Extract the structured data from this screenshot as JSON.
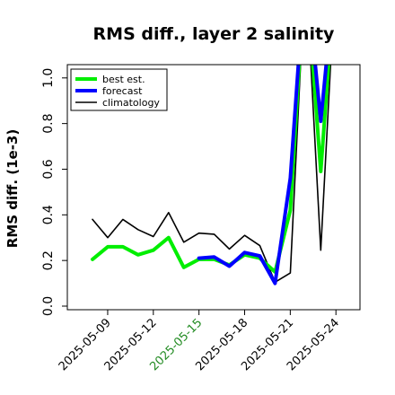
{
  "chart_data": {
    "type": "line",
    "title": "RMS diff., layer 2 salinity",
    "xlabel": "",
    "ylabel": "RMS diff. (1e-3)",
    "x_ticks": [
      "2025-05-09",
      "2025-05-12",
      "2025-05-15",
      "2025-05-18",
      "2025-05-21",
      "2025-05-24"
    ],
    "x_tick_colors": [
      "#000000",
      "#000000",
      "#228b22",
      "#000000",
      "#000000",
      "#000000"
    ],
    "y_ticks": [
      "0.0",
      "0.2",
      "0.4",
      "0.6",
      "0.8",
      "1.0"
    ],
    "ylim": [
      -0.02,
      1.04
    ],
    "x_values": [
      "2025-05-08",
      "2025-05-09",
      "2025-05-10",
      "2025-05-11",
      "2025-05-12",
      "2025-05-13",
      "2025-05-14",
      "2025-05-15",
      "2025-05-16",
      "2025-05-17",
      "2025-05-18",
      "2025-05-19",
      "2025-05-20",
      "2025-05-21",
      "2025-05-22",
      "2025-05-23",
      "2025-05-24"
    ],
    "legend_position": "top-left",
    "grid": false,
    "series": [
      {
        "name": "best est.",
        "color": "#00ee00",
        "line_width": 4,
        "values": [
          0.205,
          0.26,
          0.26,
          0.225,
          0.245,
          0.3,
          0.17,
          0.205,
          0.205,
          0.18,
          0.225,
          0.21,
          0.15,
          0.42,
          1.5,
          0.59,
          1.5
        ]
      },
      {
        "name": "forecast",
        "color": "#0000ff",
        "line_width": 4,
        "values": [
          null,
          null,
          null,
          null,
          null,
          null,
          null,
          0.21,
          0.215,
          0.175,
          0.235,
          0.22,
          0.1,
          0.56,
          1.5,
          0.81,
          1.5
        ]
      },
      {
        "name": "climatology",
        "color": "#000000",
        "line_width": 1.6,
        "values": [
          0.38,
          0.3,
          0.38,
          0.335,
          0.305,
          0.41,
          0.28,
          0.32,
          0.315,
          0.25,
          0.31,
          0.265,
          0.105,
          0.145,
          1.5,
          0.245,
          1.5
        ]
      }
    ]
  }
}
